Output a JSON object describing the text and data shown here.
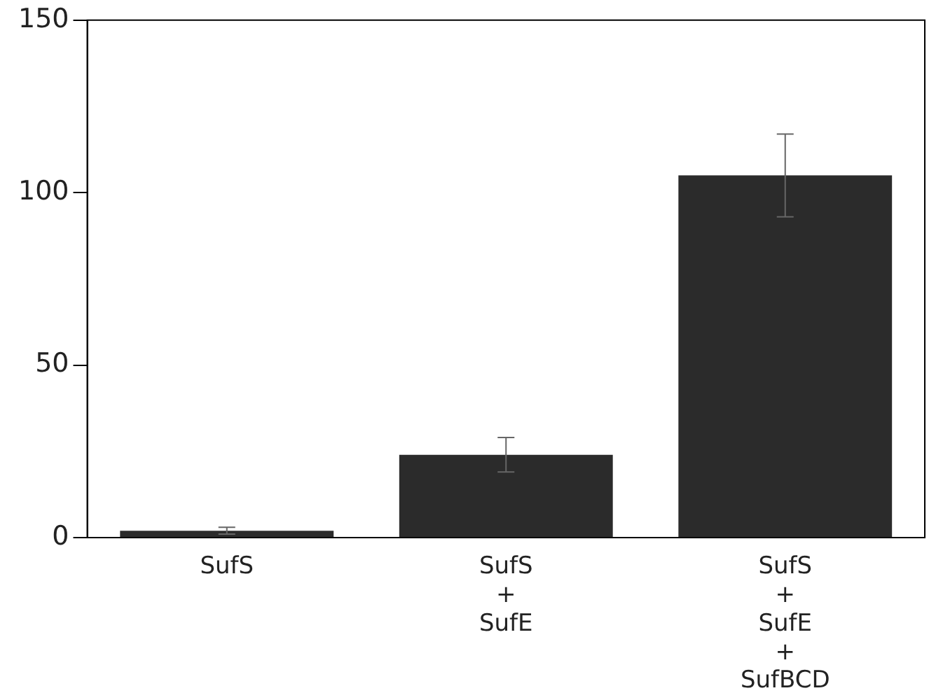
{
  "chart_data": {
    "type": "bar",
    "categories": [
      "SufS",
      "SufS\n+\nSufE",
      "SufS\n+\nSufE\n+\nSufBCD"
    ],
    "values": [
      2,
      24,
      105
    ],
    "color": "#2b2b2b",
    "errors": [
      1,
      5,
      12
    ],
    "ylim": [
      0,
      150
    ],
    "yticks": [
      0,
      50,
      100,
      150
    ],
    "grid": false
  }
}
